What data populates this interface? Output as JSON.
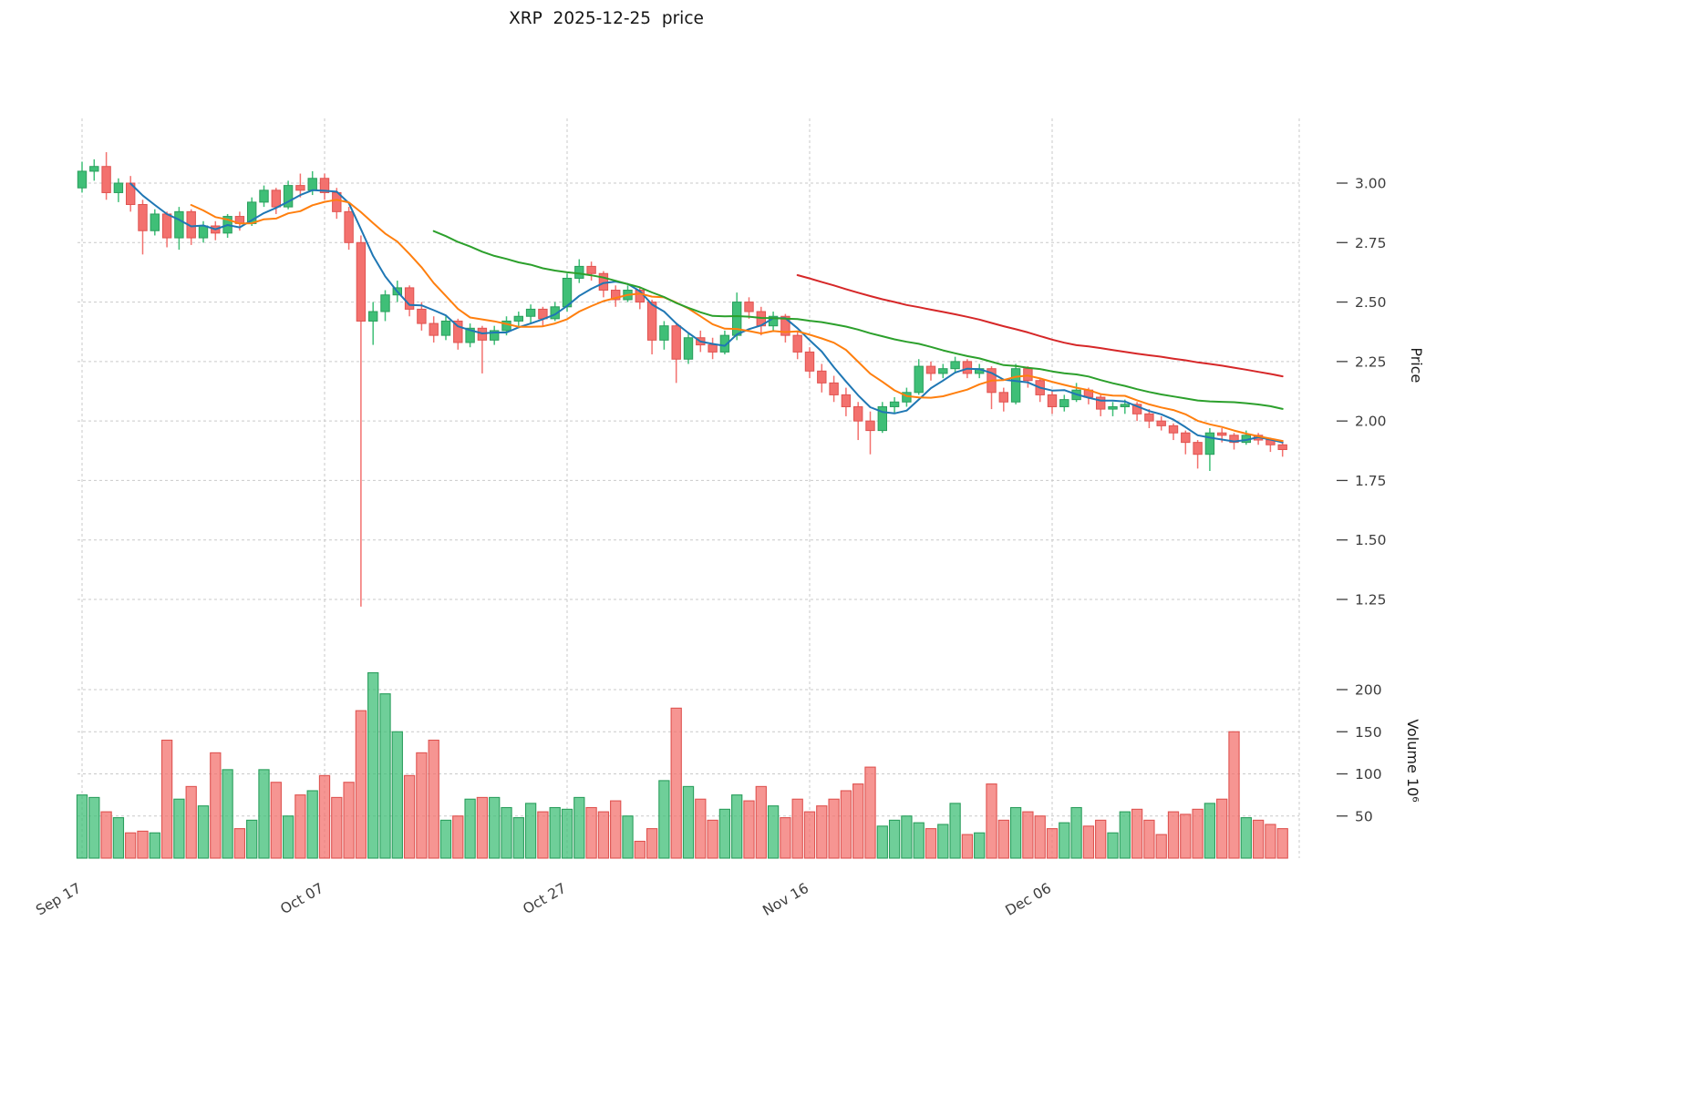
{
  "chart_data": {
    "type": "candlestick",
    "title": "XRP  2025-12-25  price",
    "ylabel": "Price",
    "y2label": "Volume  10⁶",
    "volume_unit": "10^6",
    "price_ticks": [
      1.25,
      1.5,
      1.75,
      2.0,
      2.25,
      2.5,
      2.75,
      3.0
    ],
    "volume_ticks": [
      50,
      100,
      150,
      200
    ],
    "x_ticks": [
      {
        "label": "Sep 17",
        "index": 0
      },
      {
        "label": "Oct 07",
        "index": 20
      },
      {
        "label": "Oct 27",
        "index": 40
      },
      {
        "label": "Nov 16",
        "index": 60
      },
      {
        "label": "Dec 06",
        "index": 80
      }
    ],
    "ylim": [
      1.13,
      3.27
    ],
    "grid": true,
    "legend": "none",
    "moving_averages": [
      {
        "name": "MA5",
        "period": 5,
        "color": "#1f77b4"
      },
      {
        "name": "MA10",
        "period": 10,
        "color": "#ff7f0e"
      },
      {
        "name": "MA30",
        "period": 30,
        "color": "#2ca02c"
      },
      {
        "name": "MA60",
        "period": 60,
        "color": "#d62728"
      }
    ],
    "colors": {
      "up": "#3fbf77",
      "up_edge": "#2a9e5c",
      "down": "#f3716e",
      "down_edge": "#df5350",
      "grid": "#c9c9c9",
      "tick_text": "#3d3d3d",
      "axis_label": "#1a1a1a"
    },
    "candles_format": [
      "open",
      "high",
      "low",
      "close",
      "volume_millions"
    ],
    "candles": [
      [
        2.98,
        3.09,
        2.96,
        3.05,
        75
      ],
      [
        3.05,
        3.1,
        3.01,
        3.07,
        72
      ],
      [
        3.07,
        3.13,
        2.93,
        2.96,
        55
      ],
      [
        2.96,
        3.02,
        2.92,
        3.0,
        48
      ],
      [
        3.0,
        3.03,
        2.88,
        2.91,
        30
      ],
      [
        2.91,
        2.93,
        2.7,
        2.8,
        32
      ],
      [
        2.8,
        2.89,
        2.78,
        2.87,
        30
      ],
      [
        2.87,
        2.88,
        2.73,
        2.77,
        140
      ],
      [
        2.77,
        2.9,
        2.72,
        2.88,
        70
      ],
      [
        2.88,
        2.89,
        2.74,
        2.77,
        85
      ],
      [
        2.77,
        2.84,
        2.75,
        2.82,
        62
      ],
      [
        2.82,
        2.84,
        2.76,
        2.79,
        125
      ],
      [
        2.79,
        2.87,
        2.77,
        2.86,
        105
      ],
      [
        2.86,
        2.88,
        2.8,
        2.83,
        35
      ],
      [
        2.83,
        2.94,
        2.82,
        2.92,
        45
      ],
      [
        2.92,
        2.99,
        2.9,
        2.97,
        105
      ],
      [
        2.97,
        2.98,
        2.87,
        2.9,
        90
      ],
      [
        2.9,
        3.01,
        2.89,
        2.99,
        50
      ],
      [
        2.99,
        3.04,
        2.94,
        2.97,
        75
      ],
      [
        2.97,
        3.05,
        2.95,
        3.02,
        80
      ],
      [
        3.02,
        3.04,
        2.93,
        2.96,
        98
      ],
      [
        2.96,
        2.98,
        2.85,
        2.88,
        72
      ],
      [
        2.88,
        2.9,
        2.72,
        2.75,
        90
      ],
      [
        2.75,
        2.78,
        1.22,
        2.42,
        175
      ],
      [
        2.42,
        2.5,
        2.32,
        2.46,
        220
      ],
      [
        2.46,
        2.55,
        2.42,
        2.53,
        195
      ],
      [
        2.53,
        2.59,
        2.5,
        2.56,
        150
      ],
      [
        2.56,
        2.57,
        2.44,
        2.47,
        98
      ],
      [
        2.47,
        2.5,
        2.38,
        2.41,
        125
      ],
      [
        2.41,
        2.44,
        2.33,
        2.36,
        140
      ],
      [
        2.36,
        2.44,
        2.34,
        2.42,
        45
      ],
      [
        2.42,
        2.43,
        2.3,
        2.33,
        50
      ],
      [
        2.33,
        2.41,
        2.31,
        2.39,
        70
      ],
      [
        2.39,
        2.4,
        2.2,
        2.34,
        72
      ],
      [
        2.34,
        2.4,
        2.32,
        2.38,
        72
      ],
      [
        2.38,
        2.44,
        2.36,
        2.42,
        60
      ],
      [
        2.42,
        2.46,
        2.39,
        2.44,
        48
      ],
      [
        2.44,
        2.49,
        2.41,
        2.47,
        65
      ],
      [
        2.47,
        2.48,
        2.4,
        2.43,
        55
      ],
      [
        2.43,
        2.5,
        2.42,
        2.48,
        60
      ],
      [
        2.48,
        2.62,
        2.46,
        2.6,
        58
      ],
      [
        2.6,
        2.68,
        2.58,
        2.65,
        72
      ],
      [
        2.65,
        2.67,
        2.59,
        2.62,
        60
      ],
      [
        2.62,
        2.63,
        2.52,
        2.55,
        55
      ],
      [
        2.55,
        2.57,
        2.48,
        2.51,
        68
      ],
      [
        2.51,
        2.57,
        2.5,
        2.55,
        50
      ],
      [
        2.55,
        2.56,
        2.47,
        2.5,
        20
      ],
      [
        2.5,
        2.51,
        2.28,
        2.34,
        35
      ],
      [
        2.34,
        2.42,
        2.3,
        2.4,
        92
      ],
      [
        2.4,
        2.41,
        2.16,
        2.26,
        178
      ],
      [
        2.26,
        2.37,
        2.24,
        2.35,
        85
      ],
      [
        2.35,
        2.38,
        2.29,
        2.32,
        70
      ],
      [
        2.32,
        2.35,
        2.26,
        2.29,
        45
      ],
      [
        2.29,
        2.38,
        2.28,
        2.36,
        58
      ],
      [
        2.36,
        2.54,
        2.34,
        2.5,
        75
      ],
      [
        2.5,
        2.52,
        2.43,
        2.46,
        68
      ],
      [
        2.46,
        2.48,
        2.36,
        2.4,
        85
      ],
      [
        2.4,
        2.46,
        2.38,
        2.44,
        62
      ],
      [
        2.44,
        2.45,
        2.33,
        2.36,
        48
      ],
      [
        2.36,
        2.38,
        2.26,
        2.29,
        70
      ],
      [
        2.29,
        2.31,
        2.18,
        2.21,
        55
      ],
      [
        2.21,
        2.24,
        2.12,
        2.16,
        62
      ],
      [
        2.16,
        2.19,
        2.08,
        2.11,
        70
      ],
      [
        2.11,
        2.14,
        2.02,
        2.06,
        80
      ],
      [
        2.06,
        2.08,
        1.92,
        2.0,
        88
      ],
      [
        2.0,
        2.04,
        1.86,
        1.96,
        108
      ],
      [
        1.96,
        2.08,
        1.95,
        2.06,
        38
      ],
      [
        2.06,
        2.1,
        2.03,
        2.08,
        45
      ],
      [
        2.08,
        2.14,
        2.06,
        2.12,
        50
      ],
      [
        2.12,
        2.26,
        2.11,
        2.23,
        42
      ],
      [
        2.23,
        2.25,
        2.17,
        2.2,
        35
      ],
      [
        2.2,
        2.24,
        2.18,
        2.22,
        40
      ],
      [
        2.22,
        2.27,
        2.2,
        2.25,
        65
      ],
      [
        2.25,
        2.26,
        2.18,
        2.2,
        28
      ],
      [
        2.2,
        2.24,
        2.18,
        2.22,
        30
      ],
      [
        2.22,
        2.23,
        2.05,
        2.12,
        88
      ],
      [
        2.12,
        2.14,
        2.04,
        2.08,
        45
      ],
      [
        2.08,
        2.24,
        2.07,
        2.22,
        60
      ],
      [
        2.22,
        2.23,
        2.14,
        2.17,
        55
      ],
      [
        2.17,
        2.18,
        2.08,
        2.11,
        50
      ],
      [
        2.11,
        2.13,
        2.03,
        2.06,
        35
      ],
      [
        2.06,
        2.11,
        2.04,
        2.09,
        42
      ],
      [
        2.09,
        2.16,
        2.08,
        2.13,
        60
      ],
      [
        2.13,
        2.14,
        2.07,
        2.1,
        38
      ],
      [
        2.1,
        2.11,
        2.02,
        2.05,
        45
      ],
      [
        2.05,
        2.08,
        2.02,
        2.06,
        30
      ],
      [
        2.06,
        2.09,
        2.03,
        2.07,
        55
      ],
      [
        2.07,
        2.08,
        2.0,
        2.03,
        58
      ],
      [
        2.03,
        2.05,
        1.97,
        2.0,
        45
      ],
      [
        2.0,
        2.02,
        1.96,
        1.98,
        28
      ],
      [
        1.98,
        1.99,
        1.92,
        1.95,
        55
      ],
      [
        1.95,
        1.96,
        1.86,
        1.91,
        52
      ],
      [
        1.91,
        1.92,
        1.8,
        1.86,
        58
      ],
      [
        1.86,
        1.97,
        1.79,
        1.95,
        65
      ],
      [
        1.95,
        1.97,
        1.91,
        1.94,
        70
      ],
      [
        1.94,
        1.95,
        1.88,
        1.91,
        150
      ],
      [
        1.91,
        1.96,
        1.9,
        1.94,
        48
      ],
      [
        1.94,
        1.95,
        1.9,
        1.92,
        45
      ],
      [
        1.92,
        1.93,
        1.87,
        1.9,
        40
      ],
      [
        1.9,
        1.92,
        1.85,
        1.88,
        35
      ]
    ]
  }
}
